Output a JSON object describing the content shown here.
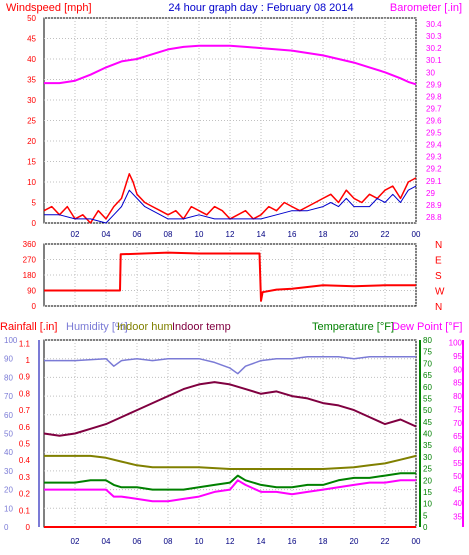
{
  "title": "24 hour graph day : February 08 2014",
  "colors": {
    "wind": "#ff0000",
    "wind_avg": "#0000cc",
    "barometer": "#ff00ff",
    "direction": "#ff0000",
    "rainfall": "#ff0000",
    "humidity": "#7b7bd6",
    "indoor_hum": "#808000",
    "indoor_temp": "#800040",
    "temperature": "#008000",
    "dew_point": "#ff00ff",
    "grid": "#c0c0c0",
    "axis": "#000000"
  },
  "x_ticks": [
    "02",
    "04",
    "06",
    "08",
    "10",
    "12",
    "14",
    "16",
    "18",
    "20",
    "22",
    "00"
  ],
  "panel1": {
    "left_label": "Windspeed [mph]",
    "right_label": "Barometer [.in]",
    "left_ticks": [
      "0",
      "5",
      "10",
      "15",
      "20",
      "25",
      "30",
      "35",
      "40",
      "45",
      "50"
    ],
    "right_ticks": [
      "28.8",
      "28.9",
      "29",
      "29.1",
      "29.2",
      "29.3",
      "29.4",
      "29.5",
      "29.6",
      "29.7",
      "29.8",
      "29.9",
      "30",
      "30.1",
      "30.2",
      "30.3",
      "30.4"
    ]
  },
  "panel2": {
    "left_ticks": [
      "0",
      "90",
      "180",
      "270",
      "360"
    ],
    "right_ticks": [
      "N",
      "W",
      "S",
      "E",
      "N"
    ]
  },
  "panel3": {
    "rainfall_label": "Rainfall [.in]",
    "humidity_label": "Humidity [%]",
    "indoor_hum_label": "Indoor hum",
    "indoor_temp_label": "Indoor temp",
    "temperature_label": "Temperature [°F]",
    "dew_point_label": "Dew Point [°F]",
    "rain_ticks": [
      "0",
      "0.1",
      "0.2",
      "0.3",
      "0.4",
      "0.5",
      "0.6",
      "0.7",
      "0.8",
      "0.9",
      "1",
      "1.1"
    ],
    "humidity_ticks": [
      "0",
      "10",
      "20",
      "30",
      "40",
      "50",
      "60",
      "70",
      "80",
      "90",
      "100"
    ],
    "temp_ticks": [
      "0",
      "5",
      "10",
      "15",
      "20",
      "25",
      "30",
      "35",
      "40",
      "45",
      "50",
      "55",
      "60",
      "65",
      "70",
      "75",
      "80"
    ],
    "dew_ticks": [
      "35",
      "40",
      "45",
      "50",
      "55",
      "60",
      "65",
      "70",
      "75",
      "80",
      "85",
      "90",
      "95",
      "100"
    ]
  },
  "chart_data": [
    {
      "type": "line",
      "title": "24 hour graph day : February 08 2014",
      "x_unit": "hour",
      "xlim": [
        0,
        24
      ],
      "series": [
        {
          "name": "Windspeed [mph]",
          "axis": "left",
          "ylim": [
            0,
            50
          ],
          "x": [
            0.0,
            0.5,
            1.0,
            1.5,
            2.0,
            2.5,
            3.0,
            3.5,
            4.0,
            4.5,
            5.0,
            5.25,
            5.5,
            5.75,
            6.0,
            6.5,
            7.0,
            7.5,
            8.0,
            8.5,
            9.0,
            9.5,
            10.0,
            10.5,
            11.0,
            11.5,
            12.0,
            12.5,
            13.0,
            13.5,
            14.0,
            14.5,
            15.0,
            15.5,
            16.0,
            16.5,
            17.0,
            17.5,
            18.0,
            18.5,
            19.0,
            19.5,
            20.0,
            20.5,
            21.0,
            21.5,
            22.0,
            22.5,
            23.0,
            23.5,
            24.0
          ],
          "values": [
            3,
            4,
            2,
            4,
            1,
            2,
            0,
            3,
            1,
            4,
            6,
            9,
            12,
            10,
            7,
            5,
            4,
            3,
            2,
            3,
            1,
            4,
            3,
            2,
            4,
            3,
            1,
            2,
            3,
            1,
            2,
            4,
            3,
            5,
            4,
            3,
            4,
            5,
            6,
            7,
            5,
            8,
            6,
            5,
            7,
            6,
            8,
            9,
            6,
            10,
            11
          ]
        },
        {
          "name": "Average windspeed",
          "axis": "left",
          "ylim": [
            0,
            50
          ],
          "x": [
            0.0,
            1.0,
            2.0,
            3.0,
            4.0,
            4.5,
            5.0,
            5.5,
            6.0,
            6.5,
            7.0,
            7.5,
            8.0,
            9.0,
            10.0,
            11.0,
            12.0,
            13.0,
            14.0,
            15.0,
            16.0,
            17.0,
            18.0,
            18.5,
            19.0,
            19.5,
            20.0,
            21.0,
            21.5,
            22.0,
            22.5,
            23.0,
            23.5,
            24.0
          ],
          "values": [
            2,
            2,
            1,
            1,
            0,
            2,
            4,
            8,
            6,
            4,
            3,
            2,
            1,
            1,
            2,
            1,
            1,
            1,
            1,
            2,
            3,
            3,
            4,
            5,
            4,
            6,
            4,
            4,
            6,
            5,
            7,
            5,
            8,
            9
          ]
        },
        {
          "name": "Barometer [.in]",
          "axis": "right",
          "ylim": [
            28.75,
            30.45
          ],
          "x": [
            0,
            1,
            2,
            3,
            4,
            5,
            6,
            7,
            8,
            9,
            10,
            11,
            12,
            13,
            14,
            15,
            16,
            17,
            18,
            19,
            20,
            21,
            22,
            23,
            23.5,
            24
          ],
          "values": [
            29.91,
            29.91,
            29.93,
            29.98,
            30.04,
            30.09,
            30.11,
            30.15,
            30.19,
            30.21,
            30.22,
            30.22,
            30.22,
            30.21,
            30.2,
            30.19,
            30.18,
            30.16,
            30.14,
            30.11,
            30.08,
            30.04,
            30.0,
            29.95,
            29.92,
            29.9
          ]
        }
      ]
    },
    {
      "type": "line",
      "ylabel": "Wind direction",
      "xlim": [
        0,
        24
      ],
      "series": [
        {
          "name": "Wind direction",
          "ylim": [
            0,
            360
          ],
          "x": [
            0,
            4.9,
            4.95,
            8.0,
            10.0,
            13.9,
            14.0,
            14.1,
            15.0,
            16.0,
            18.0,
            20.0,
            22.0,
            24.0
          ],
          "values": [
            90,
            90,
            300,
            310,
            305,
            305,
            30,
            80,
            95,
            100,
            120,
            115,
            120,
            120
          ]
        }
      ]
    },
    {
      "type": "line",
      "xlim": [
        0,
        24
      ],
      "series": [
        {
          "name": "Humidity [%]",
          "axis": "left",
          "ylim": [
            0,
            100
          ],
          "x": [
            0,
            2,
            4,
            4.5,
            5,
            6,
            7,
            8,
            9,
            10,
            11,
            12,
            12.5,
            13,
            14,
            15,
            16,
            17,
            18,
            19,
            20,
            21,
            22,
            23,
            24
          ],
          "values": [
            89,
            89,
            90,
            86,
            89,
            90,
            89,
            90,
            90,
            90,
            88,
            85,
            82,
            86,
            89,
            90,
            90,
            91,
            91,
            91,
            90,
            91,
            91,
            91,
            91
          ]
        },
        {
          "name": "Indoor temp",
          "axis": "right",
          "ylim": [
            0,
            80
          ],
          "x": [
            0,
            1,
            2,
            3,
            4,
            5,
            6,
            7,
            8,
            9,
            10,
            11,
            12,
            13,
            14,
            15,
            16,
            17,
            18,
            19,
            20,
            21,
            22,
            23,
            24
          ],
          "values": [
            40,
            39,
            40,
            42,
            44,
            47,
            50,
            53,
            56,
            59,
            61,
            62,
            61,
            59,
            57,
            58,
            56,
            55,
            53,
            52,
            50,
            47,
            44,
            46,
            43
          ]
        },
        {
          "name": "Indoor hum",
          "axis": "left",
          "ylim": [
            0,
            100
          ],
          "x": [
            0,
            2,
            3,
            4,
            5,
            6,
            7,
            8,
            10,
            12,
            14,
            16,
            18,
            20,
            21,
            22,
            23,
            24
          ],
          "values": [
            38,
            38,
            38,
            37,
            35,
            33,
            32,
            32,
            32,
            31,
            31,
            31,
            31,
            32,
            33,
            34,
            36,
            38
          ]
        },
        {
          "name": "Temperature [°F]",
          "axis": "right",
          "ylim": [
            0,
            80
          ],
          "x": [
            0,
            2,
            3,
            4,
            4.5,
            5,
            6,
            7,
            8,
            9,
            10,
            11,
            12,
            12.5,
            13,
            14,
            15,
            16,
            17,
            18,
            19,
            20,
            21,
            22,
            23,
            24
          ],
          "values": [
            19,
            19,
            20,
            20,
            18,
            17,
            17,
            16,
            16,
            16,
            17,
            18,
            19,
            22,
            20,
            18,
            17,
            17,
            18,
            18,
            20,
            21,
            21,
            22,
            23,
            23
          ]
        },
        {
          "name": "Dew Point [°F]",
          "axis": "right",
          "ylim": [
            0,
            80
          ],
          "x": [
            0,
            2,
            3,
            4,
            4.5,
            5,
            6,
            7,
            8,
            9,
            10,
            11,
            12,
            12.5,
            13,
            14,
            15,
            16,
            17,
            18,
            19,
            20,
            21,
            22,
            23,
            24
          ],
          "values": [
            16,
            16,
            16,
            16,
            13,
            13,
            12,
            11,
            11,
            12,
            13,
            15,
            16,
            20,
            18,
            15,
            15,
            14,
            15,
            16,
            17,
            18,
            19,
            19,
            20,
            20
          ]
        },
        {
          "name": "Rainfall [.in]",
          "axis": "left",
          "ylim": [
            0,
            1.12
          ],
          "x": [
            0,
            24
          ],
          "values": [
            0,
            0
          ]
        }
      ]
    }
  ]
}
